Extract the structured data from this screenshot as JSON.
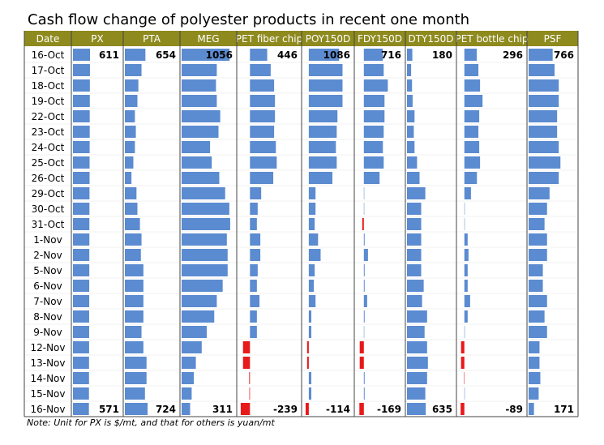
{
  "chart_data": {
    "type": "databar-table",
    "title": "Cash flow change of polyester products in recent one month",
    "category_header": "Date",
    "categories": [
      "16-Oct",
      "17-Oct",
      "18-Oct",
      "19-Oct",
      "22-Oct",
      "23-Oct",
      "24-Oct",
      "25-Oct",
      "26-Oct",
      "29-Oct",
      "30-Oct",
      "31-Oct",
      "1-Nov",
      "2-Nov",
      "5-Nov",
      "6-Nov",
      "7-Nov",
      "8-Nov",
      "9-Nov",
      "12-Nov",
      "13-Nov",
      "14-Nov",
      "15-Nov",
      "16-Nov"
    ],
    "positive_color": "#5b8bd0",
    "negative_color": "#e8191a",
    "header_color": "#8e8a1e",
    "series": [
      {
        "name": "PX",
        "xlim": [
          0,
          1800
        ],
        "values": [
          611,
          608,
          605,
          603,
          600,
          600,
          598,
          595,
          595,
          592,
          590,
          588,
          588,
          585,
          585,
          583,
          582,
          580,
          580,
          578,
          576,
          575,
          573,
          571
        ]
      },
      {
        "name": "PTA",
        "xlim": [
          0,
          1600
        ],
        "values": [
          654,
          530,
          430,
          400,
          320,
          350,
          320,
          270,
          210,
          370,
          400,
          480,
          530,
          510,
          590,
          590,
          590,
          590,
          530,
          590,
          690,
          690,
          640,
          724
        ]
      },
      {
        "name": "MEG",
        "xlim": [
          150,
          1100
        ],
        "values": [
          1056,
          815,
          800,
          815,
          880,
          847,
          688,
          720,
          862,
          973,
          1052,
          1068,
          1005,
          1020,
          1020,
          926,
          815,
          767,
          625,
          530,
          419,
          380,
          340,
          311
        ]
      },
      {
        "name": "PET fiber chip",
        "xlim": [
          -300,
          1000
        ],
        "values": [
          446,
          536,
          625,
          647,
          647,
          625,
          670,
          692,
          603,
          290,
          200,
          179,
          268,
          268,
          200,
          179,
          246,
          179,
          179,
          -180,
          -180,
          -20,
          -15,
          -239
        ]
      },
      {
        "name": "POY150D",
        "xlim": [
          -200,
          1600
        ],
        "values": [
          1086,
          1207,
          1207,
          1207,
          1026,
          1000,
          970,
          1000,
          845,
          241,
          241,
          211,
          332,
          423,
          211,
          181,
          241,
          90,
          90,
          -60,
          -60,
          90,
          90,
          -114
        ]
      },
      {
        "name": "FDY150D",
        "xlim": [
          -300,
          1600
        ],
        "values": [
          716,
          750,
          906,
          781,
          781,
          750,
          720,
          750,
          594,
          10,
          10,
          -60,
          30,
          156,
          30,
          30,
          125,
          30,
          10,
          -156,
          -156,
          30,
          30,
          -169
        ]
      },
      {
        "name": "DTY150D",
        "xlim": [
          0,
          1700
        ],
        "values": [
          180,
          140,
          170,
          190,
          255,
          230,
          255,
          340,
          425,
          620,
          480,
          480,
          480,
          480,
          480,
          565,
          510,
          680,
          595,
          680,
          708,
          680,
          620,
          635
        ]
      },
      {
        "name": "PET bottle chip",
        "xlim": [
          -150,
          1050
        ],
        "values": [
          296,
          335,
          375,
          434,
          355,
          335,
          355,
          375,
          300,
          158,
          5,
          5,
          79,
          99,
          79,
          79,
          138,
          79,
          10,
          -79,
          -79,
          -5,
          5,
          -89
        ]
      },
      {
        "name": "PSF",
        "xlim": [
          0,
          1600
        ],
        "values": [
          766,
          827,
          960,
          960,
          907,
          907,
          960,
          1013,
          960,
          667,
          587,
          507,
          587,
          587,
          453,
          453,
          587,
          507,
          587,
          347,
          347,
          373,
          320,
          171
        ]
      }
    ],
    "note": "Note: Unit for PX is $/mt, and that for others is yuan/mt"
  }
}
